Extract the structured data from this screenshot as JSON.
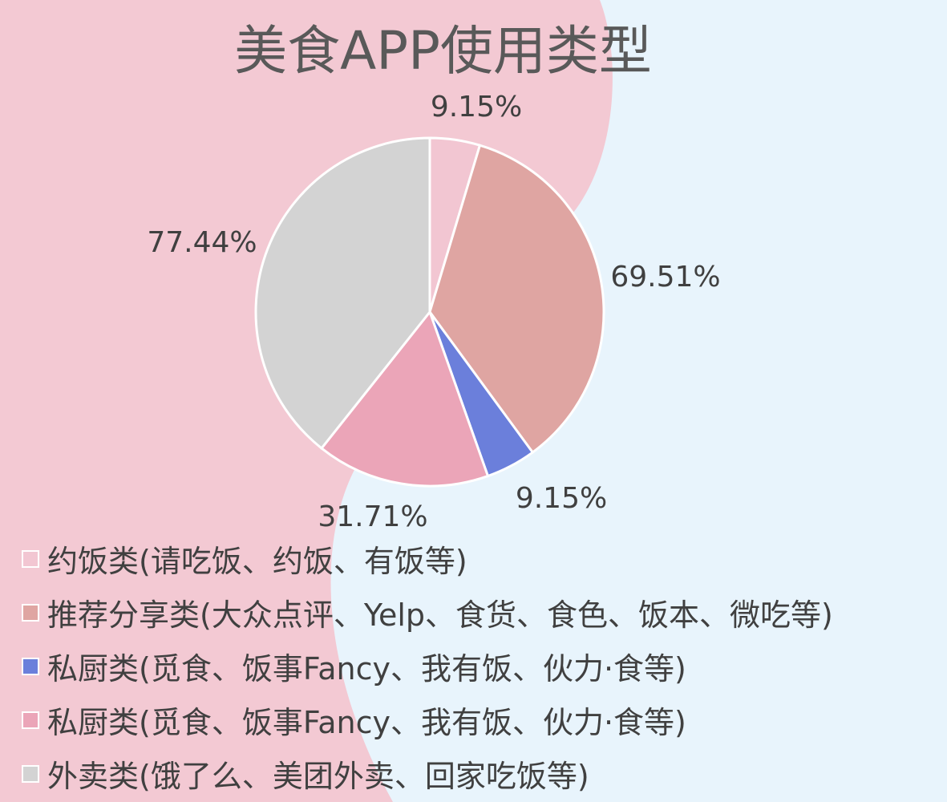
{
  "chart_data": {
    "type": "pie",
    "title": "美食APP使用类型",
    "series": [
      {
        "name": "约饭类(请吃饭、约饭、有饭等)",
        "value": 9.15,
        "label": "9.15%",
        "color": "#f2c6d2"
      },
      {
        "name": "推荐分享类(大众点评、Yelp、食货、食色、饭本、微吃等)",
        "value": 69.51,
        "label": "69.51%",
        "color": "#dfa5a2"
      },
      {
        "name": "私厨类(觅食、饭事Fancy、我有饭、伙力·食等)",
        "value": 9.15,
        "label": "9.15%",
        "color": "#6b7fdb"
      },
      {
        "name": "私厨类(觅食、饭事Fancy、我有饭、伙力·食等)",
        "value": 31.71,
        "label": "31.71%",
        "color": "#eba5b8"
      },
      {
        "name": "外卖类(饿了么、美团外卖、回家吃饭等)",
        "value": 77.44,
        "label": "77.44%",
        "color": "#d3d3d3"
      }
    ],
    "legend_position": "bottom-left"
  },
  "colors": {
    "background_blue": "#e8f4fc",
    "background_pink": "#f3c9d3",
    "slice_border": "#ffffff"
  }
}
